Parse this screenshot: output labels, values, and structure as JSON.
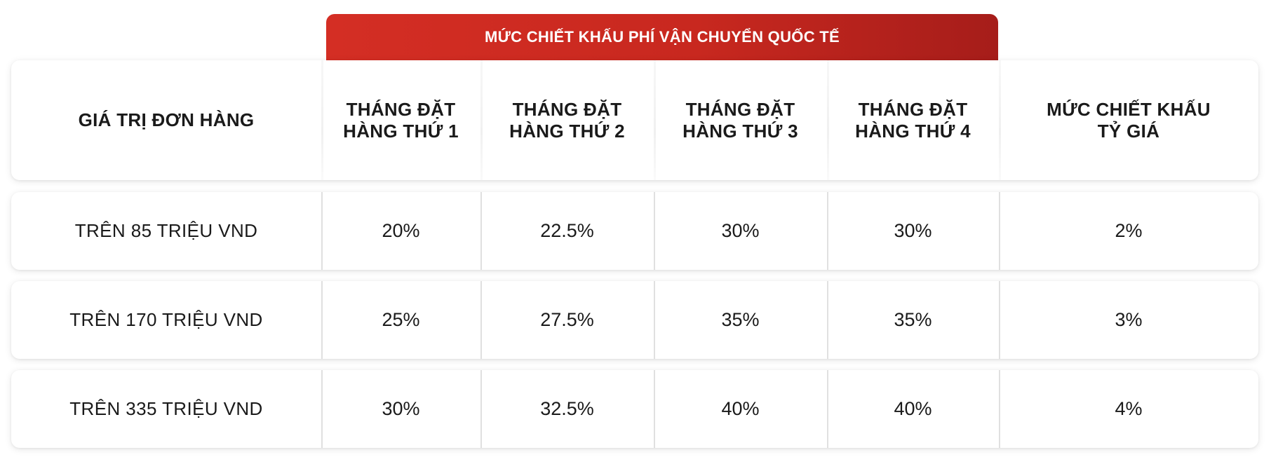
{
  "banner": "MỨC CHIẾT KHẤU PHÍ VẬN CHUYỂN QUỐC TẾ",
  "headers": {
    "order_value": "GIÁ TRỊ ĐƠN HÀNG",
    "month1_line1": "THÁNG ĐẶT",
    "month1_line2": "HÀNG THỨ 1",
    "month2_line1": "THÁNG ĐẶT",
    "month2_line2": "HÀNG THỨ 2",
    "month3_line1": "THÁNG ĐẶT",
    "month3_line2": "HÀNG THỨ 3",
    "month4_line1": "THÁNG ĐẶT",
    "month4_line2": "HÀNG THỨ 4",
    "rate_line1": "MỨC CHIẾT KHẤU",
    "rate_line2": "TỶ GIÁ"
  },
  "rows": [
    {
      "order_value": "TRÊN 85 TRIỆU VND",
      "m1": "20%",
      "m2": "22.5%",
      "m3": "30%",
      "m4": "30%",
      "rate": "2%"
    },
    {
      "order_value": "TRÊN 170 TRIỆU VND",
      "m1": "25%",
      "m2": "27.5%",
      "m3": "35%",
      "m4": "35%",
      "rate": "3%"
    },
    {
      "order_value": "TRÊN 335 TRIỆU VND",
      "m1": "30%",
      "m2": "32.5%",
      "m3": "40%",
      "m4": "40%",
      "rate": "4%"
    }
  ],
  "colors": {
    "banner_start": "#d42e24",
    "banner_end": "#a61d1a",
    "text": "#1a1a1a"
  }
}
